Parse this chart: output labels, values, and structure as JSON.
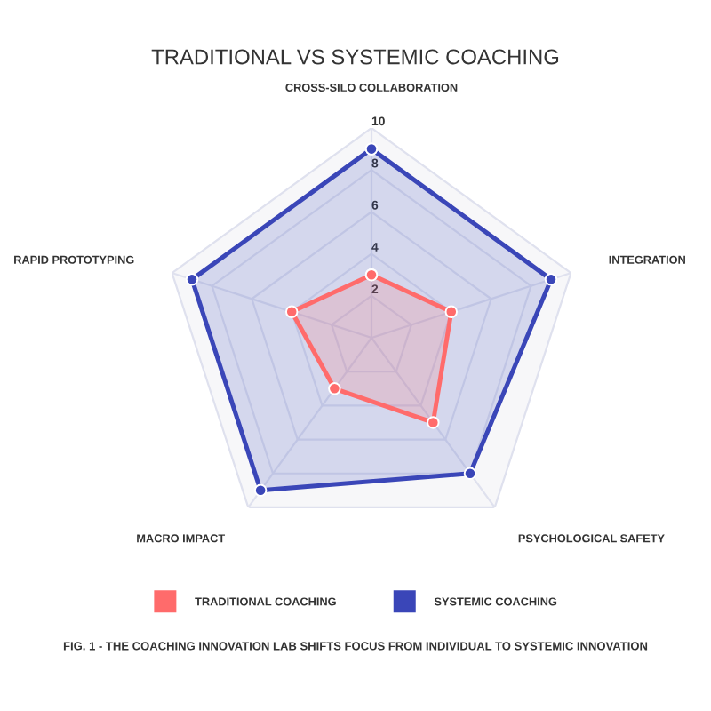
{
  "chart_data": {
    "type": "radar",
    "title": "TRADITIONAL VS SYSTEMIC COACHING",
    "categories": [
      "CROSS-SILO COLLABORATION",
      "INTEGRATION",
      "PSYCHOLOGICAL SAFETY",
      "MACRO IMPACT",
      "RAPID PROTOTYPING"
    ],
    "series": [
      {
        "name": "TRADITIONAL COACHING",
        "color": "#ff6b6b",
        "values": [
          3,
          4,
          5,
          3,
          4
        ]
      },
      {
        "name": "SYSTEMIC COACHING",
        "color": "#3a46b8",
        "values": [
          9,
          9,
          8,
          9,
          9
        ]
      }
    ],
    "ylim": [
      0,
      10
    ],
    "yticks": [
      2,
      4,
      6,
      8,
      10
    ],
    "grid": true,
    "legend": "bottom",
    "marker": "circle",
    "annotations": [
      "FIG. 1 - THE COACHING INNOVATION LAB SHIFTS FOCUS FROM INDIVIDUAL TO SYSTEMIC INNOVATION"
    ]
  }
}
